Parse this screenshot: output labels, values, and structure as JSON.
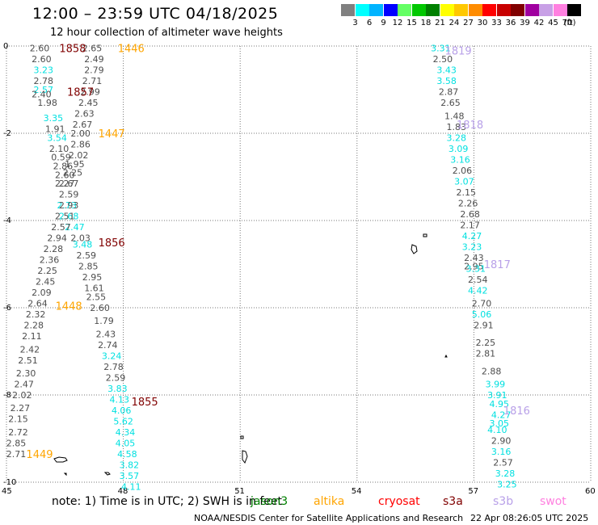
{
  "header": {
    "title": "12:00 – 23:59 UTC 04/18/2025",
    "subtitle": "12 hour collection of altimeter wave heights"
  },
  "legend": {
    "unit": "(ft)",
    "colors": [
      "#808080",
      "#00ffff",
      "#00b4ff",
      "#0000ff",
      "#64ff64",
      "#00c800",
      "#008000",
      "#ffff00",
      "#ffc800",
      "#ff8c00",
      "#ff0000",
      "#c80000",
      "#800000",
      "#a000a0",
      "#c8a0e6",
      "#ff80e0",
      "#000000"
    ],
    "ticks": [
      "3",
      "6",
      "9",
      "12",
      "15",
      "18",
      "21",
      "24",
      "27",
      "30",
      "33",
      "36",
      "39",
      "42",
      "45",
      "70"
    ]
  },
  "note": {
    "text": "note:  1) Time is in UTC; 2) SWH is in feet"
  },
  "satellites": [
    {
      "name": "jason3",
      "color": "#008000"
    },
    {
      "name": "altika",
      "color": "#ffa500"
    },
    {
      "name": "cryosat",
      "color": "#ff0000"
    },
    {
      "name": "s3a",
      "color": "#800000"
    },
    {
      "name": "s3b",
      "color": "#b8a0e8"
    },
    {
      "name": "swot",
      "color": "#ff80e0"
    }
  ],
  "footer": {
    "credit": "NOAA/NESDIS Center for Satellite Applications and Research",
    "timestamp": "22 Apr 08:26:05 UTC 2025"
  },
  "chart_data": {
    "type": "scatter",
    "title": "12:00 – 23:59 UTC 04/18/2025",
    "x_ticks": [
      "45",
      "48",
      "51",
      "54",
      "57",
      "60"
    ],
    "y_ticks": [
      "0",
      "-2",
      "-4",
      "-6",
      "-8",
      "-10"
    ],
    "xlim": [
      45,
      60
    ],
    "ylim": [
      -10,
      0
    ],
    "grid": true,
    "text_colors": {
      "gray": "#4d4d4d",
      "cyan": "#00e0e0"
    },
    "pass_labels": [
      {
        "text": "1858",
        "x": 46.7,
        "y": -0.05,
        "color": "#800000"
      },
      {
        "text": "1446",
        "x": 48.2,
        "y": -0.05,
        "color": "#ffa500"
      },
      {
        "text": "1857",
        "x": 46.9,
        "y": -1.05,
        "color": "#800000"
      },
      {
        "text": "1447",
        "x": 47.7,
        "y": -2.0,
        "color": "#ffa500"
      },
      {
        "text": "1856",
        "x": 47.7,
        "y": -4.5,
        "color": "#800000"
      },
      {
        "text": "1448",
        "x": 46.6,
        "y": -5.95,
        "color": "#ffa500"
      },
      {
        "text": "1855",
        "x": 48.55,
        "y": -8.15,
        "color": "#800000"
      },
      {
        "text": "1449",
        "x": 45.85,
        "y": -9.35,
        "color": "#ffa500"
      },
      {
        "text": "1819",
        "x": 56.6,
        "y": -0.1,
        "color": "#b8a0e8"
      },
      {
        "text": "1818",
        "x": 56.9,
        "y": -1.8,
        "color": "#b8a0e8"
      },
      {
        "text": "1817",
        "x": 57.6,
        "y": -5.0,
        "color": "#b8a0e8"
      },
      {
        "text": "1816",
        "x": 58.1,
        "y": -8.35,
        "color": "#b8a0e8"
      }
    ],
    "points": [
      {
        "x": 45.85,
        "y": -0.05,
        "v": "2.60",
        "c": "gray"
      },
      {
        "x": 47.2,
        "y": -0.05,
        "v": "2.65",
        "c": "gray"
      },
      {
        "x": 45.9,
        "y": -0.3,
        "v": "2.60",
        "c": "gray"
      },
      {
        "x": 47.25,
        "y": -0.3,
        "v": "2.49",
        "c": "gray"
      },
      {
        "x": 45.95,
        "y": -0.55,
        "v": "3.23",
        "c": "cyan"
      },
      {
        "x": 47.25,
        "y": -0.55,
        "v": "2.79",
        "c": "gray"
      },
      {
        "x": 45.95,
        "y": -0.8,
        "v": "2.78",
        "c": "gray"
      },
      {
        "x": 47.2,
        "y": -0.8,
        "v": "2.71",
        "c": "gray"
      },
      {
        "x": 45.95,
        "y": -1.0,
        "v": "2.57",
        "c": "cyan"
      },
      {
        "x": 47.15,
        "y": -1.05,
        "v": "2.99",
        "c": "gray"
      },
      {
        "x": 45.9,
        "y": -1.1,
        "v": "2.40",
        "c": "gray"
      },
      {
        "x": 47.1,
        "y": -1.3,
        "v": "2.45",
        "c": "gray"
      },
      {
        "x": 46.05,
        "y": -1.3,
        "v": "1.98",
        "c": "gray"
      },
      {
        "x": 47.0,
        "y": -1.55,
        "v": "2.63",
        "c": "gray"
      },
      {
        "x": 46.2,
        "y": -1.65,
        "v": "3.35",
        "c": "cyan"
      },
      {
        "x": 46.95,
        "y": -1.8,
        "v": "2.67",
        "c": "gray"
      },
      {
        "x": 46.25,
        "y": -1.9,
        "v": "1.91",
        "c": "gray"
      },
      {
        "x": 46.9,
        "y": -2.0,
        "v": "2.00",
        "c": "gray"
      },
      {
        "x": 46.3,
        "y": -2.1,
        "v": "3.54",
        "c": "cyan"
      },
      {
        "x": 46.9,
        "y": -2.25,
        "v": "2.86",
        "c": "gray"
      },
      {
        "x": 46.35,
        "y": -2.35,
        "v": "2.10",
        "c": "gray"
      },
      {
        "x": 46.85,
        "y": -2.5,
        "v": "2.02",
        "c": "gray"
      },
      {
        "x": 46.4,
        "y": -2.55,
        "v": "0.59",
        "c": "gray"
      },
      {
        "x": 46.75,
        "y": -2.7,
        "v": "1.95",
        "c": "gray"
      },
      {
        "x": 46.45,
        "y": -2.75,
        "v": "2.86",
        "c": "gray"
      },
      {
        "x": 46.7,
        "y": -2.9,
        "v": "2.25",
        "c": "gray"
      },
      {
        "x": 46.5,
        "y": -2.95,
        "v": "2.60",
        "c": "gray"
      },
      {
        "x": 46.6,
        "y": -3.15,
        "v": "2.67",
        "c": "gray"
      },
      {
        "x": 46.5,
        "y": -3.15,
        "v": "2.27",
        "c": "gray"
      },
      {
        "x": 46.6,
        "y": -3.4,
        "v": "2.59",
        "c": "gray"
      },
      {
        "x": 46.55,
        "y": -3.65,
        "v": "2.73",
        "c": "cyan"
      },
      {
        "x": 46.6,
        "y": -3.65,
        "v": "2.93",
        "c": "gray"
      },
      {
        "x": 46.6,
        "y": -3.9,
        "v": "2.68",
        "c": "cyan"
      },
      {
        "x": 46.5,
        "y": -3.9,
        "v": "2.51",
        "c": "gray"
      },
      {
        "x": 46.75,
        "y": -4.15,
        "v": "2.47",
        "c": "cyan"
      },
      {
        "x": 46.4,
        "y": -4.15,
        "v": "2.57",
        "c": "gray"
      },
      {
        "x": 46.9,
        "y": -4.4,
        "v": "2.03",
        "c": "gray"
      },
      {
        "x": 46.3,
        "y": -4.4,
        "v": "2.94",
        "c": "gray"
      },
      {
        "x": 46.95,
        "y": -4.55,
        "v": "3.48",
        "c": "cyan"
      },
      {
        "x": 46.2,
        "y": -4.65,
        "v": "2.28",
        "c": "gray"
      },
      {
        "x": 47.05,
        "y": -4.8,
        "v": "2.59",
        "c": "gray"
      },
      {
        "x": 46.1,
        "y": -4.9,
        "v": "2.36",
        "c": "gray"
      },
      {
        "x": 47.1,
        "y": -5.05,
        "v": "2.85",
        "c": "gray"
      },
      {
        "x": 46.05,
        "y": -5.15,
        "v": "2.25",
        "c": "gray"
      },
      {
        "x": 47.2,
        "y": -5.3,
        "v": "2.95",
        "c": "gray"
      },
      {
        "x": 46.0,
        "y": -5.4,
        "v": "2.45",
        "c": "gray"
      },
      {
        "x": 47.25,
        "y": -5.55,
        "v": "1.61",
        "c": "gray"
      },
      {
        "x": 45.9,
        "y": -5.65,
        "v": "2.09",
        "c": "gray"
      },
      {
        "x": 47.3,
        "y": -5.75,
        "v": "2.55",
        "c": "gray"
      },
      {
        "x": 45.8,
        "y": -5.9,
        "v": "2.64",
        "c": "gray"
      },
      {
        "x": 47.4,
        "y": -6.0,
        "v": "2.60",
        "c": "gray"
      },
      {
        "x": 45.75,
        "y": -6.15,
        "v": "2.32",
        "c": "gray"
      },
      {
        "x": 47.5,
        "y": -6.3,
        "v": "1.79",
        "c": "gray"
      },
      {
        "x": 45.7,
        "y": -6.4,
        "v": "2.28",
        "c": "gray"
      },
      {
        "x": 47.55,
        "y": -6.6,
        "v": "2.43",
        "c": "gray"
      },
      {
        "x": 45.65,
        "y": -6.65,
        "v": "2.11",
        "c": "gray"
      },
      {
        "x": 47.6,
        "y": -6.85,
        "v": "2.74",
        "c": "gray"
      },
      {
        "x": 45.6,
        "y": -6.95,
        "v": "2.42",
        "c": "gray"
      },
      {
        "x": 47.7,
        "y": -7.1,
        "v": "3.24",
        "c": "cyan"
      },
      {
        "x": 45.55,
        "y": -7.2,
        "v": "2.51",
        "c": "gray"
      },
      {
        "x": 47.75,
        "y": -7.35,
        "v": "2.78",
        "c": "gray"
      },
      {
        "x": 45.5,
        "y": -7.5,
        "v": "2.30",
        "c": "gray"
      },
      {
        "x": 47.8,
        "y": -7.6,
        "v": "2.59",
        "c": "gray"
      },
      {
        "x": 45.45,
        "y": -7.75,
        "v": "2.47",
        "c": "gray"
      },
      {
        "x": 47.85,
        "y": -7.85,
        "v": "3.83",
        "c": "cyan"
      },
      {
        "x": 45.4,
        "y": -8.0,
        "v": "2.02",
        "c": "gray"
      },
      {
        "x": 47.9,
        "y": -8.1,
        "v": "4.13",
        "c": "cyan"
      },
      {
        "x": 45.35,
        "y": -8.3,
        "v": "2.27",
        "c": "gray"
      },
      {
        "x": 47.95,
        "y": -8.35,
        "v": "4.06",
        "c": "cyan"
      },
      {
        "x": 45.3,
        "y": -8.55,
        "v": "2.15",
        "c": "gray"
      },
      {
        "x": 48.0,
        "y": -8.6,
        "v": "5.62",
        "c": "cyan"
      },
      {
        "x": 45.3,
        "y": -8.85,
        "v": "2.72",
        "c": "gray"
      },
      {
        "x": 48.05,
        "y": -8.85,
        "v": "4.34",
        "c": "cyan"
      },
      {
        "x": 45.25,
        "y": -9.1,
        "v": "2.85",
        "c": "gray"
      },
      {
        "x": 48.05,
        "y": -9.1,
        "v": "4.05",
        "c": "cyan"
      },
      {
        "x": 45.25,
        "y": -9.35,
        "v": "2.71",
        "c": "gray"
      },
      {
        "x": 48.1,
        "y": -9.35,
        "v": "4.58",
        "c": "cyan"
      },
      {
        "x": 48.15,
        "y": -9.6,
        "v": "3.82",
        "c": "cyan"
      },
      {
        "x": 48.15,
        "y": -9.85,
        "v": "3.57",
        "c": "cyan"
      },
      {
        "x": 48.2,
        "y": -10.1,
        "v": "4.11",
        "c": "cyan"
      },
      {
        "x": 56.15,
        "y": -0.05,
        "v": "3.31",
        "c": "cyan"
      },
      {
        "x": 56.2,
        "y": -0.3,
        "v": "2.50",
        "c": "gray"
      },
      {
        "x": 56.3,
        "y": -0.55,
        "v": "3.43",
        "c": "cyan"
      },
      {
        "x": 56.3,
        "y": -0.8,
        "v": "3.58",
        "c": "cyan"
      },
      {
        "x": 56.35,
        "y": -1.05,
        "v": "2.87",
        "c": "gray"
      },
      {
        "x": 56.4,
        "y": -1.3,
        "v": "2.65",
        "c": "gray"
      },
      {
        "x": 56.5,
        "y": -1.6,
        "v": "1.48",
        "c": "gray"
      },
      {
        "x": 56.55,
        "y": -1.85,
        "v": "1.83",
        "c": "gray"
      },
      {
        "x": 56.55,
        "y": -2.1,
        "v": "3.28",
        "c": "cyan"
      },
      {
        "x": 56.6,
        "y": -2.35,
        "v": "3.09",
        "c": "cyan"
      },
      {
        "x": 56.65,
        "y": -2.6,
        "v": "3.16",
        "c": "cyan"
      },
      {
        "x": 56.7,
        "y": -2.85,
        "v": "2.06",
        "c": "gray"
      },
      {
        "x": 56.75,
        "y": -3.1,
        "v": "3.07",
        "c": "cyan"
      },
      {
        "x": 56.8,
        "y": -3.35,
        "v": "2.15",
        "c": "gray"
      },
      {
        "x": 56.85,
        "y": -3.6,
        "v": "2.26",
        "c": "gray"
      },
      {
        "x": 56.9,
        "y": -3.85,
        "v": "2.68",
        "c": "gray"
      },
      {
        "x": 56.9,
        "y": -4.1,
        "v": "2.17",
        "c": "gray"
      },
      {
        "x": 56.95,
        "y": -4.35,
        "v": "4.27",
        "c": "cyan"
      },
      {
        "x": 56.95,
        "y": -4.6,
        "v": "3.23",
        "c": "cyan"
      },
      {
        "x": 57.0,
        "y": -4.85,
        "v": "2.43",
        "c": "gray"
      },
      {
        "x": 57.0,
        "y": -5.05,
        "v": "2.95",
        "c": "gray"
      },
      {
        "x": 57.05,
        "y": -5.1,
        "v": "3.31",
        "c": "cyan"
      },
      {
        "x": 57.1,
        "y": -5.35,
        "v": "2.54",
        "c": "gray"
      },
      {
        "x": 57.1,
        "y": -5.6,
        "v": "4.42",
        "c": "cyan"
      },
      {
        "x": 57.2,
        "y": -5.9,
        "v": "2.70",
        "c": "gray"
      },
      {
        "x": 57.2,
        "y": -6.15,
        "v": "5.06",
        "c": "cyan"
      },
      {
        "x": 57.25,
        "y": -6.4,
        "v": "2.91",
        "c": "gray"
      },
      {
        "x": 57.3,
        "y": -6.8,
        "v": "2.25",
        "c": "gray"
      },
      {
        "x": 57.3,
        "y": -7.05,
        "v": "2.81",
        "c": "gray"
      },
      {
        "x": 57.45,
        "y": -7.45,
        "v": "2.88",
        "c": "gray"
      },
      {
        "x": 57.55,
        "y": -7.75,
        "v": "3.99",
        "c": "cyan"
      },
      {
        "x": 57.6,
        "y": -8.0,
        "v": "3.91",
        "c": "cyan"
      },
      {
        "x": 57.65,
        "y": -8.2,
        "v": "4.95",
        "c": "cyan"
      },
      {
        "x": 57.7,
        "y": -8.45,
        "v": "4.27",
        "c": "cyan"
      },
      {
        "x": 57.65,
        "y": -8.65,
        "v": "3.05",
        "c": "cyan"
      },
      {
        "x": 57.6,
        "y": -8.8,
        "v": "4.10",
        "c": "cyan"
      },
      {
        "x": 57.7,
        "y": -9.05,
        "v": "2.90",
        "c": "gray"
      },
      {
        "x": 57.7,
        "y": -9.3,
        "v": "3.16",
        "c": "cyan"
      },
      {
        "x": 57.75,
        "y": -9.55,
        "v": "2.57",
        "c": "gray"
      },
      {
        "x": 57.8,
        "y": -9.8,
        "v": "3.28",
        "c": "cyan"
      },
      {
        "x": 57.85,
        "y": -10.05,
        "v": "3.25",
        "c": "cyan"
      }
    ]
  }
}
